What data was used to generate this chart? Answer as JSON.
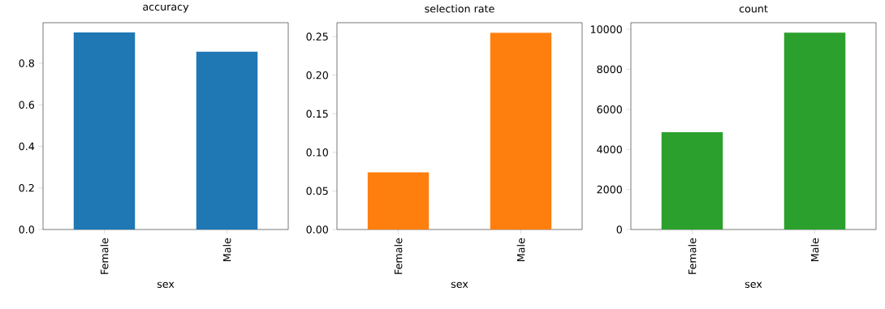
{
  "chart_data": [
    {
      "type": "bar",
      "title": "accuracy",
      "xlabel": "sex",
      "categories": [
        "Female",
        "Male"
      ],
      "values": [
        0.948,
        0.855
      ],
      "color": "#1f77b4",
      "ylim": [
        0,
        0.995
      ],
      "yticks": [
        {
          "value": 0,
          "label": "0.0"
        },
        0.2,
        0.4,
        0.6,
        0.8
      ]
    },
    {
      "type": "bar",
      "title": "selection rate",
      "xlabel": "sex",
      "categories": [
        "Female",
        "Male"
      ],
      "values": [
        0.074,
        0.255
      ],
      "color": "#ff7f0e",
      "ylim": [
        0,
        0.268
      ],
      "yticks": [
        {
          "value": 0,
          "label": "0.00"
        },
        0.05,
        {
          "value": 0.1,
          "label": "0.10"
        },
        0.15,
        {
          "value": 0.2,
          "label": "0.20"
        },
        0.25
      ]
    },
    {
      "type": "bar",
      "title": "count",
      "xlabel": "sex",
      "categories": [
        "Female",
        "Male"
      ],
      "values": [
        4858,
        9838
      ],
      "color": "#2ca02c",
      "ylim": [
        0,
        10330
      ],
      "yticks": [
        0,
        2000,
        4000,
        6000,
        8000,
        10000
      ]
    }
  ]
}
